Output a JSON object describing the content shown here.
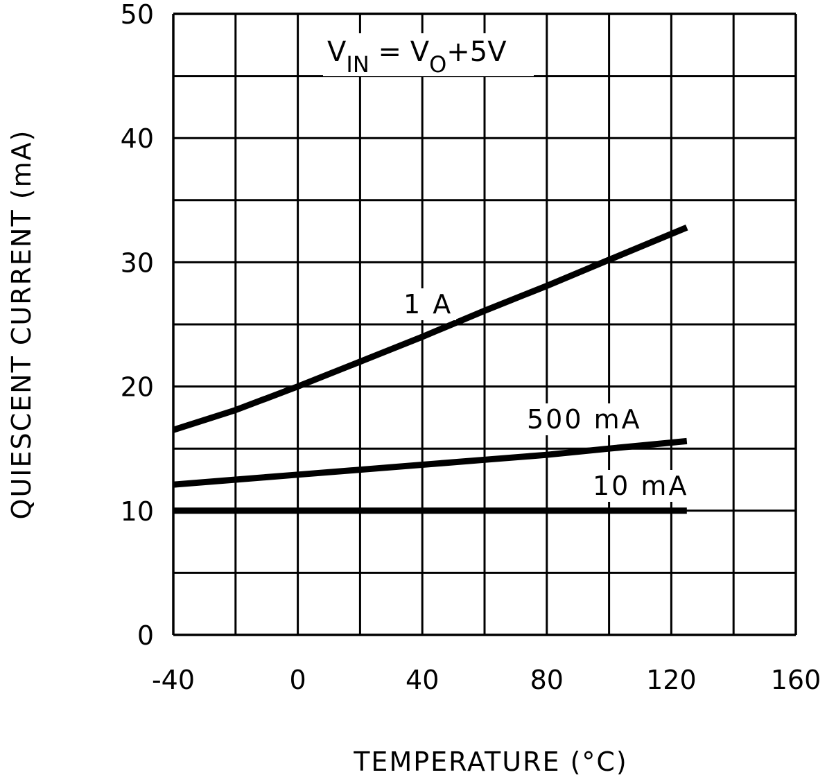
{
  "chart_data": {
    "type": "line",
    "title": "",
    "xlabel": "TEMPERATURE (°C)",
    "ylabel": "QUIESCENT CURRENT (mA)",
    "xlim": [
      -40,
      160
    ],
    "ylim": [
      0,
      50
    ],
    "xticks": [
      -40,
      0,
      40,
      80,
      120,
      160
    ],
    "yticks": [
      0,
      10,
      20,
      30,
      40,
      50
    ],
    "x_tick_labels": [
      "-40",
      "0",
      "40",
      "80",
      "120",
      "160"
    ],
    "y_tick_labels": [
      "0",
      "10",
      "20",
      "30",
      "40",
      "50"
    ],
    "x_gridlines": [
      -40,
      -20,
      0,
      20,
      40,
      60,
      80,
      100,
      120,
      140,
      160
    ],
    "y_gridlines": [
      0,
      5,
      10,
      15,
      20,
      25,
      30,
      35,
      40,
      45,
      50
    ],
    "grid": true,
    "legend": "none",
    "annotation": {
      "parts": [
        {
          "text": "V",
          "baseline": "normal"
        },
        {
          "text": "IN",
          "baseline": "sub"
        },
        {
          "text": " = V",
          "baseline": "normal"
        },
        {
          "text": "O",
          "baseline": "sub"
        },
        {
          "text": "+5V",
          "baseline": "normal"
        }
      ]
    },
    "series": [
      {
        "name": "1 A",
        "label": "1 A",
        "x": [
          -40,
          -20,
          0,
          20,
          40,
          60,
          80,
          100,
          125
        ],
        "y": [
          16.5,
          18.1,
          20.0,
          22.0,
          24.0,
          26.1,
          28.1,
          30.2,
          32.8
        ]
      },
      {
        "name": "500 mA",
        "label": "500 mA",
        "x": [
          -40,
          -20,
          0,
          20,
          40,
          60,
          80,
          100,
          125
        ],
        "y": [
          12.1,
          12.5,
          12.9,
          13.3,
          13.7,
          14.1,
          14.5,
          15.0,
          15.6
        ]
      },
      {
        "name": "10 mA",
        "label": "10 mA",
        "x": [
          -40,
          125
        ],
        "y": [
          10.0,
          10.0
        ]
      }
    ]
  }
}
